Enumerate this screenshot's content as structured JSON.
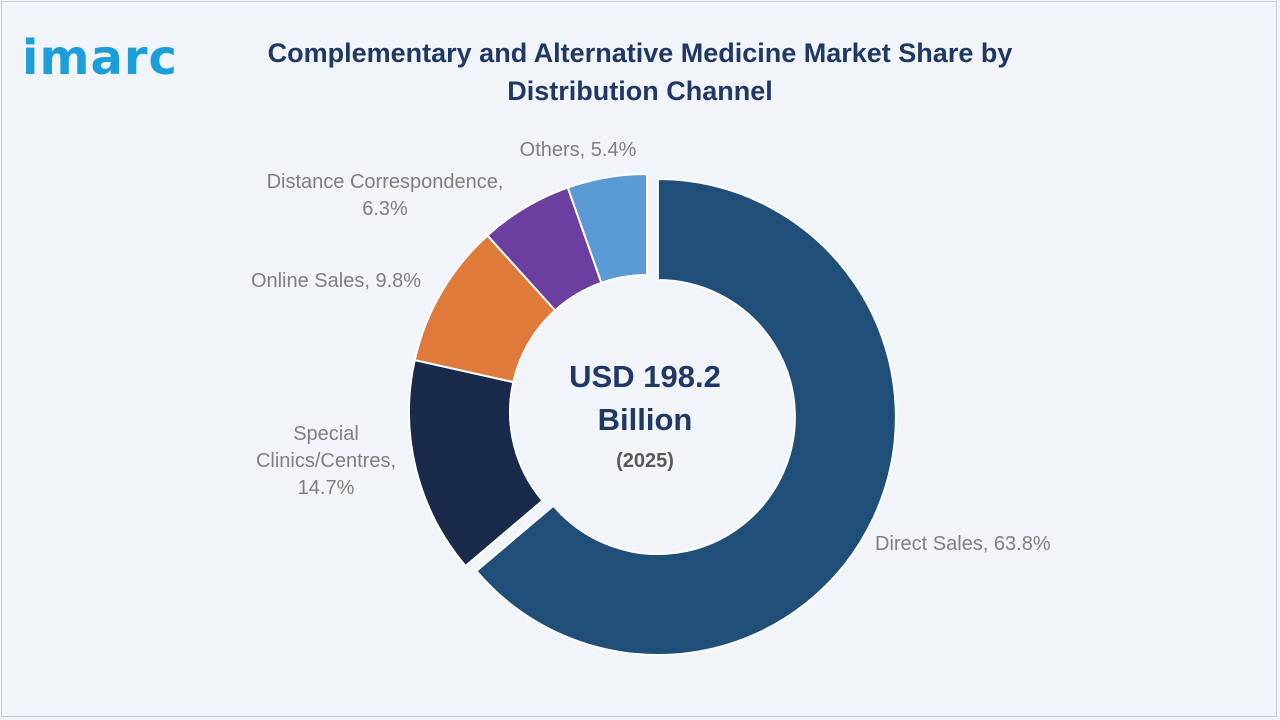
{
  "brand": {
    "logo_text": "imarc"
  },
  "chart_data": {
    "type": "pie",
    "donut": true,
    "title": "Complementary and Alternative Medicine Market Share by Distribution Channel",
    "center_value": "USD 198.2 Billion",
    "center_line1": "USD 198.2",
    "center_line2": "Billion",
    "center_year": "(2025)",
    "slices": [
      {
        "name": "Direct Sales",
        "value": 63.8,
        "color": "#1f4e79",
        "label_lines": [
          "Direct Sales, 63.8%"
        ],
        "exploded": true
      },
      {
        "name": "Special Clinics/Centres",
        "value": 14.7,
        "color": "#1a2a4a",
        "label_lines": [
          "Special",
          "Clinics/Centres,",
          "14.7%"
        ],
        "exploded": false
      },
      {
        "name": "Online Sales",
        "value": 9.8,
        "color": "#e07a3a",
        "label_lines": [
          "Online Sales, 9.8%"
        ],
        "exploded": false
      },
      {
        "name": "Distance Correspondence",
        "value": 6.3,
        "color": "#6b3fa0",
        "label_lines": [
          "Distance Correspondence,",
          "6.3%"
        ],
        "exploded": false
      },
      {
        "name": "Others",
        "value": 5.4,
        "color": "#5b9bd5",
        "label_lines": [
          "Others, 5.4%"
        ],
        "exploded": false
      }
    ]
  }
}
